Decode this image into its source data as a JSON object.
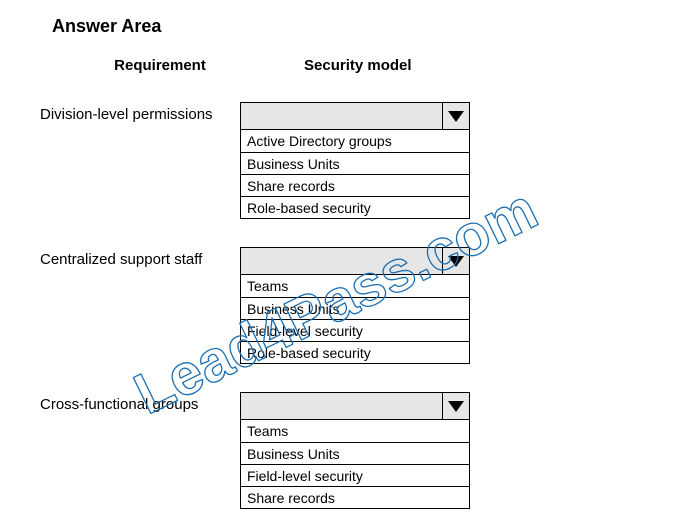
{
  "title": "Answer Area",
  "headers": {
    "requirement": "Requirement",
    "security": "Security model"
  },
  "groups": [
    {
      "label": "Division-level permissions",
      "options": [
        "Active Directory groups",
        "Business Units",
        "Share records",
        "Role-based security"
      ]
    },
    {
      "label": "Centralized support staff",
      "options": [
        "Teams",
        "Business Units",
        "Field-level security",
        "Role-based security"
      ]
    },
    {
      "label": "Cross-functional groups",
      "options": [
        "Teams",
        "Business Units",
        "Field-level security",
        "Share records"
      ]
    }
  ],
  "watermark": {
    "text": "Lead4Pass.com",
    "stroke": "#1a6fb3",
    "fill": "none",
    "stroke_width": 1.3,
    "font_size": 58,
    "font_weight": "bold",
    "rotate_deg": -26
  },
  "colors": {
    "page_bg": "#ffffff",
    "text": "#000000",
    "select_bg": "#e6e6e6",
    "border": "#000000"
  }
}
